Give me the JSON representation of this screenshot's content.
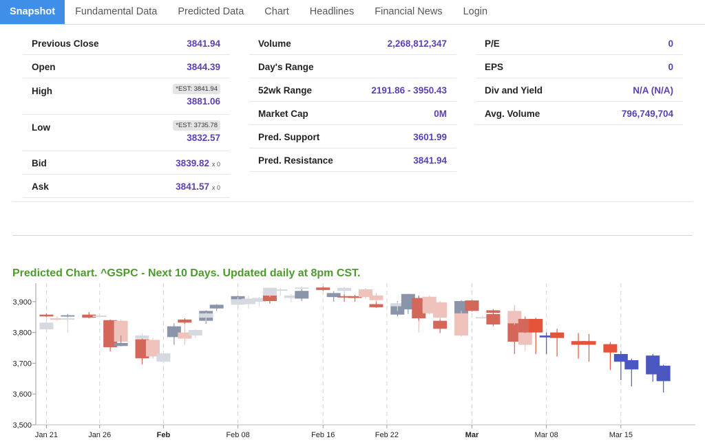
{
  "tabs": [
    {
      "label": "Snapshot",
      "active": true
    },
    {
      "label": "Fundamental Data"
    },
    {
      "label": "Predicted Data"
    },
    {
      "label": "Chart"
    },
    {
      "label": "Headlines"
    },
    {
      "label": "Financial News"
    },
    {
      "label": "Login"
    }
  ],
  "snapshot": {
    "col1": {
      "previous_close": {
        "label": "Previous Close",
        "value": "3841.94"
      },
      "open": {
        "label": "Open",
        "value": "3844.39"
      },
      "high": {
        "label": "High",
        "est": "*EST: 3841.94",
        "value": "3881.06"
      },
      "low": {
        "label": "Low",
        "est": "*EST: 3735.78",
        "value": "3832.57"
      },
      "bid": {
        "label": "Bid",
        "value": "3839.82",
        "size": "x 0"
      },
      "ask": {
        "label": "Ask",
        "value": "3841.57",
        "size": "x 0"
      }
    },
    "col2": {
      "volume": {
        "label": "Volume",
        "value": "2,268,812,347"
      },
      "days_range": {
        "label": "Day's Range",
        "value": ""
      },
      "range_52wk": {
        "label": "52wk Range",
        "value": "2191.86 - 3950.43"
      },
      "market_cap": {
        "label": "Market Cap",
        "value": "0M"
      },
      "pred_support": {
        "label": "Pred. Support",
        "value": "3601.99"
      },
      "pred_resistance": {
        "label": "Pred. Resistance",
        "value": "3841.94"
      }
    },
    "col3": {
      "pe": {
        "label": "P/E",
        "value": "0"
      },
      "eps": {
        "label": "EPS",
        "value": "0"
      },
      "div_yield": {
        "label": "Div and Yield",
        "value": "N/A (N/A)"
      },
      "avg_volume": {
        "label": "Avg. Volume",
        "value": "796,749,704"
      }
    }
  },
  "chart_title": "Predicted Chart. ^GSPC - Next 10 Days. Updated daily at 8pm CST.",
  "chart_data": {
    "type": "candlestick",
    "title": "Predicted Chart. ^GSPC - Next 10 Days. Updated daily at 8pm CST.",
    "ylim": [
      3500,
      3960
    ],
    "y_ticks": [
      "3,500",
      "3,600",
      "3,700",
      "3,800",
      "3,900"
    ],
    "y_tick_values": [
      3500,
      3600,
      3700,
      3800,
      3900
    ],
    "x_tick_labels": [
      {
        "label": "Jan 21",
        "day": 1,
        "bold": false
      },
      {
        "label": "Jan 26",
        "day": 6,
        "bold": false
      },
      {
        "label": "Feb",
        "day": 12,
        "bold": true
      },
      {
        "label": "Feb 08",
        "day": 19,
        "bold": false
      },
      {
        "label": "Feb 16",
        "day": 27,
        "bold": false
      },
      {
        "label": "Feb 22",
        "day": 33,
        "bold": false
      },
      {
        "label": "Mar",
        "day": 41,
        "bold": true
      },
      {
        "label": "Mar 08",
        "day": 48,
        "bold": false
      },
      {
        "label": "Mar 15",
        "day": 55,
        "bold": false
      }
    ],
    "day_range": [
      0,
      62
    ],
    "colors": {
      "up_solid": "#8a95aa",
      "down_solid": "#d2675a",
      "up_light": "#d6d9e0",
      "down_light": "#efc3bc",
      "down_pred": "#e5533a",
      "up_pred": "#4b57c0"
    },
    "candles": [
      {
        "day": 1,
        "open": 3832,
        "high": 3850,
        "low": 3812,
        "close": 3810,
        "style": "up_light"
      },
      {
        "day": 1,
        "open": 3858,
        "high": 3862,
        "low": 3850,
        "close": 3852,
        "style": "down_solid"
      },
      {
        "day": 2,
        "open": 3846,
        "high": 3852,
        "low": 3838,
        "close": 3842,
        "style": "down_light"
      },
      {
        "day": 3,
        "open": 3852,
        "high": 3860,
        "low": 3838,
        "close": 3856,
        "style": "up_solid"
      },
      {
        "day": 3,
        "open": 3846,
        "high": 3850,
        "low": 3800,
        "close": 3844,
        "style": "up_light"
      },
      {
        "day": 5,
        "open": 3858,
        "high": 3866,
        "low": 3846,
        "close": 3848,
        "style": "down_solid"
      },
      {
        "day": 6,
        "open": 3855,
        "high": 3860,
        "low": 3850,
        "close": 3852,
        "style": "up_light"
      },
      {
        "day": 7,
        "open": 3840,
        "high": 3842,
        "low": 3738,
        "close": 3752,
        "style": "down_solid"
      },
      {
        "day": 8,
        "open": 3838,
        "high": 3842,
        "low": 3760,
        "close": 3770,
        "style": "down_light"
      },
      {
        "day": 8,
        "open": 3766,
        "high": 3790,
        "low": 3755,
        "close": 3756,
        "style": "up_solid"
      },
      {
        "day": 10,
        "open": 3790,
        "high": 3795,
        "low": 3752,
        "close": 3780,
        "style": "up_light"
      },
      {
        "day": 10,
        "open": 3778,
        "high": 3780,
        "low": 3696,
        "close": 3716,
        "style": "down_solid"
      },
      {
        "day": 11,
        "open": 3776,
        "high": 3782,
        "low": 3716,
        "close": 3722,
        "style": "down_light"
      },
      {
        "day": 12,
        "open": 3705,
        "high": 3730,
        "low": 3700,
        "close": 3722,
        "style": "up_light"
      },
      {
        "day": 12,
        "open": 3732,
        "high": 3736,
        "low": 3712,
        "close": 3715,
        "style": "up_light"
      },
      {
        "day": 13,
        "open": 3785,
        "high": 3830,
        "low": 3760,
        "close": 3820,
        "style": "up_solid"
      },
      {
        "day": 14,
        "open": 3800,
        "high": 3840,
        "low": 3760,
        "close": 3780,
        "style": "down_light"
      },
      {
        "day": 14,
        "open": 3842,
        "high": 3846,
        "low": 3828,
        "close": 3832,
        "style": "down_solid"
      },
      {
        "day": 15,
        "open": 3790,
        "high": 3810,
        "low": 3782,
        "close": 3808,
        "style": "up_light"
      },
      {
        "day": 16,
        "open": 3838,
        "high": 3872,
        "low": 3828,
        "close": 3870,
        "style": "up_solid"
      },
      {
        "day": 16,
        "open": 3848,
        "high": 3865,
        "low": 3836,
        "close": 3862,
        "style": "up_light"
      },
      {
        "day": 17,
        "open": 3878,
        "high": 3892,
        "low": 3870,
        "close": 3890,
        "style": "up_solid"
      },
      {
        "day": 19,
        "open": 3900,
        "high": 3920,
        "low": 3880,
        "close": 3918,
        "style": "up_solid"
      },
      {
        "day": 19,
        "open": 3890,
        "high": 3915,
        "low": 3880,
        "close": 3908,
        "style": "up_light"
      },
      {
        "day": 20,
        "open": 3892,
        "high": 3920,
        "low": 3878,
        "close": 3910,
        "style": "up_light"
      },
      {
        "day": 21,
        "open": 3900,
        "high": 3915,
        "low": 3885,
        "close": 3912,
        "style": "up_light"
      },
      {
        "day": 22,
        "open": 3920,
        "high": 3925,
        "low": 3894,
        "close": 3902,
        "style": "down_solid"
      },
      {
        "day": 22,
        "open": 3920,
        "high": 3946,
        "low": 3915,
        "close": 3945,
        "style": "up_light"
      },
      {
        "day": 23,
        "open": 3938,
        "high": 3945,
        "low": 3920,
        "close": 3940,
        "style": "up_light"
      },
      {
        "day": 24,
        "open": 3912,
        "high": 3924,
        "low": 3898,
        "close": 3920,
        "style": "up_light"
      },
      {
        "day": 25,
        "open": 3910,
        "high": 3948,
        "low": 3902,
        "close": 3935,
        "style": "up_solid"
      },
      {
        "day": 25,
        "open": 3946,
        "high": 3950,
        "low": 3940,
        "close": 3945,
        "style": "up_light"
      },
      {
        "day": 27,
        "open": 3946,
        "high": 3950,
        "low": 3935,
        "close": 3938,
        "style": "down_solid"
      },
      {
        "day": 28,
        "open": 3915,
        "high": 3934,
        "low": 3900,
        "close": 3928,
        "style": "up_solid"
      },
      {
        "day": 29,
        "open": 3915,
        "high": 3944,
        "low": 3900,
        "close": 3918,
        "style": "down_solid"
      },
      {
        "day": 29,
        "open": 3935,
        "high": 3948,
        "low": 3924,
        "close": 3945,
        "style": "up_light"
      },
      {
        "day": 30,
        "open": 3918,
        "high": 3922,
        "low": 3900,
        "close": 3912,
        "style": "down_solid"
      },
      {
        "day": 31,
        "open": 3940,
        "high": 3944,
        "low": 3910,
        "close": 3915,
        "style": "down_light"
      },
      {
        "day": 32,
        "open": 3920,
        "high": 3928,
        "low": 3900,
        "close": 3905,
        "style": "down_light"
      },
      {
        "day": 32,
        "open": 3892,
        "high": 3900,
        "low": 3880,
        "close": 3882,
        "style": "down_solid"
      },
      {
        "day": 34,
        "open": 3858,
        "high": 3902,
        "low": 3852,
        "close": 3890,
        "style": "up_solid"
      },
      {
        "day": 34,
        "open": 3885,
        "high": 3900,
        "low": 3870,
        "close": 3895,
        "style": "up_light"
      },
      {
        "day": 35,
        "open": 3875,
        "high": 3925,
        "low": 3860,
        "close": 3925,
        "style": "up_solid"
      },
      {
        "day": 36,
        "open": 3866,
        "high": 3870,
        "low": 3800,
        "close": 3862,
        "style": "down_light"
      },
      {
        "day": 36,
        "open": 3912,
        "high": 3920,
        "low": 3838,
        "close": 3846,
        "style": "down_solid"
      },
      {
        "day": 37,
        "open": 3916,
        "high": 3920,
        "low": 3858,
        "close": 3862,
        "style": "down_light"
      },
      {
        "day": 38,
        "open": 3838,
        "high": 3862,
        "low": 3798,
        "close": 3812,
        "style": "down_solid"
      },
      {
        "day": 38,
        "open": 3898,
        "high": 3902,
        "low": 3842,
        "close": 3848,
        "style": "down_light"
      },
      {
        "day": 40,
        "open": 3850,
        "high": 3905,
        "low": 3842,
        "close": 3902,
        "style": "up_solid"
      },
      {
        "day": 40,
        "open": 3862,
        "high": 3870,
        "low": 3786,
        "close": 3790,
        "style": "down_light"
      },
      {
        "day": 41,
        "open": 3904,
        "high": 3906,
        "low": 3868,
        "close": 3870,
        "style": "down_solid"
      },
      {
        "day": 42,
        "open": 3850,
        "high": 3856,
        "low": 3845,
        "close": 3848,
        "style": "up_light"
      },
      {
        "day": 43,
        "open": 3860,
        "high": 3870,
        "low": 3820,
        "close": 3826,
        "style": "down_solid"
      },
      {
        "day": 43,
        "open": 3872,
        "high": 3876,
        "low": 3858,
        "close": 3864,
        "style": "down_solid"
      },
      {
        "day": 45,
        "open": 3830,
        "high": 3880,
        "low": 3730,
        "close": 3770,
        "style": "down_solid"
      },
      {
        "day": 45,
        "open": 3870,
        "high": 3890,
        "low": 3825,
        "close": 3830,
        "style": "down_light"
      },
      {
        "day": 46,
        "open": 3830,
        "high": 3850,
        "low": 3740,
        "close": 3760,
        "style": "down_light"
      },
      {
        "day": 46,
        "open": 3844,
        "high": 3852,
        "low": 3798,
        "close": 3800,
        "style": "down_solid"
      },
      {
        "day": 47,
        "open": 3844,
        "high": 3848,
        "low": 3730,
        "close": 3800,
        "style": "down_pred"
      },
      {
        "day": 48,
        "open": 3784,
        "high": 3800,
        "low": 3730,
        "close": 3790,
        "style": "up_pred"
      },
      {
        "day": 49,
        "open": 3800,
        "high": 3812,
        "low": 3722,
        "close": 3782,
        "style": "down_pred"
      },
      {
        "day": 51,
        "open": 3772,
        "high": 3798,
        "low": 3715,
        "close": 3760,
        "style": "down_pred"
      },
      {
        "day": 52,
        "open": 3772,
        "high": 3795,
        "low": 3705,
        "close": 3760,
        "style": "down_pred"
      },
      {
        "day": 54,
        "open": 3762,
        "high": 3768,
        "low": 3678,
        "close": 3735,
        "style": "down_pred"
      },
      {
        "day": 55,
        "open": 3705,
        "high": 3740,
        "low": 3645,
        "close": 3730,
        "style": "up_pred"
      },
      {
        "day": 56,
        "open": 3680,
        "high": 3715,
        "low": 3625,
        "close": 3710,
        "style": "up_pred"
      },
      {
        "day": 58,
        "open": 3664,
        "high": 3730,
        "low": 3640,
        "close": 3725,
        "style": "up_pred"
      },
      {
        "day": 59,
        "open": 3642,
        "high": 3695,
        "low": 3605,
        "close": 3692,
        "style": "up_pred"
      }
    ]
  }
}
